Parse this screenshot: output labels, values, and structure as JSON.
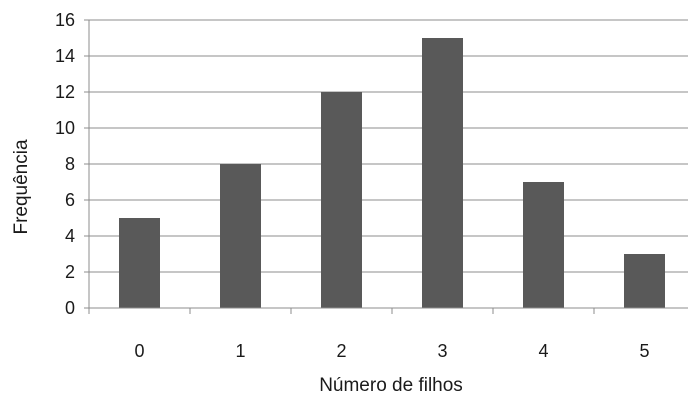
{
  "chart_data": {
    "type": "bar",
    "categories": [
      "0",
      "1",
      "2",
      "3",
      "4",
      "5"
    ],
    "values": [
      5,
      8,
      12,
      15,
      7,
      3
    ],
    "title": "",
    "xlabel": "Número de filhos",
    "ylabel": "Frequência",
    "ylim": [
      0,
      16
    ],
    "yticks": [
      0,
      2,
      4,
      6,
      8,
      10,
      12,
      14,
      16
    ],
    "grid": true,
    "bar_color": "#595959",
    "grid_color": "#8c8c8c",
    "axis_color": "#8c8c8c"
  }
}
